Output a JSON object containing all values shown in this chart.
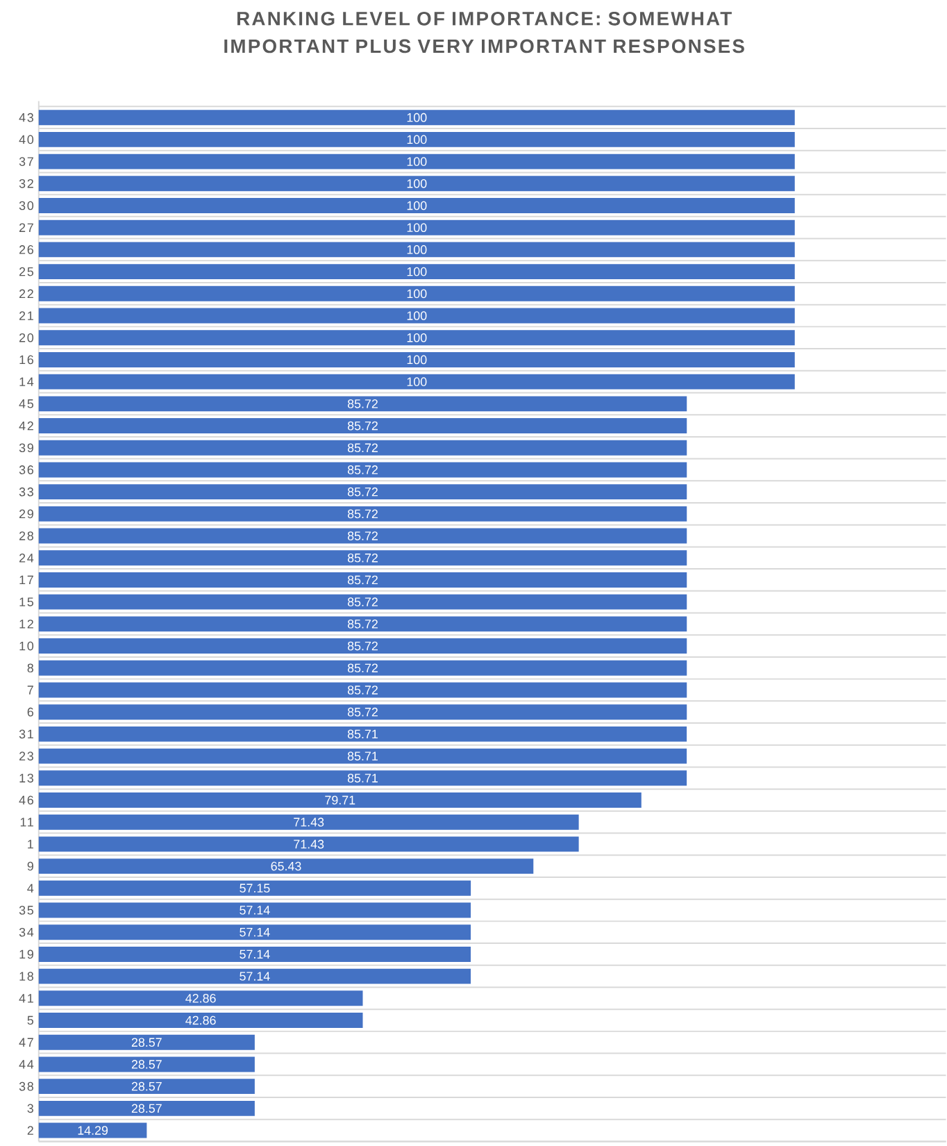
{
  "chart_data": {
    "type": "bar",
    "orientation": "horizontal",
    "title": "RANKING LEVEL OF IMPORTANCE: SOMEWHAT IMPORTANT PLUS VERY IMPORTANT RESPONSES",
    "categories": [
      "43",
      "40",
      "37",
      "32",
      "30",
      "27",
      "26",
      "25",
      "22",
      "21",
      "20",
      "16",
      "14",
      "45",
      "42",
      "39",
      "36",
      "33",
      "29",
      "28",
      "24",
      "17",
      "15",
      "12",
      "10",
      "8",
      "7",
      "6",
      "31",
      "23",
      "13",
      "46",
      "11",
      "1",
      "9",
      "4",
      "35",
      "34",
      "19",
      "18",
      "41",
      "5",
      "47",
      "44",
      "38",
      "3",
      "2"
    ],
    "values": [
      100,
      100,
      100,
      100,
      100,
      100,
      100,
      100,
      100,
      100,
      100,
      100,
      100,
      85.72,
      85.72,
      85.72,
      85.72,
      85.72,
      85.72,
      85.72,
      85.72,
      85.72,
      85.72,
      85.72,
      85.72,
      85.72,
      85.72,
      85.72,
      85.71,
      85.71,
      85.71,
      79.71,
      71.43,
      71.43,
      65.43,
      57.15,
      57.14,
      57.14,
      57.14,
      57.14,
      42.86,
      42.86,
      28.57,
      28.57,
      28.57,
      28.57,
      14.29
    ],
    "color": "#4472c4",
    "data_labels": true,
    "grid": "y"
  }
}
